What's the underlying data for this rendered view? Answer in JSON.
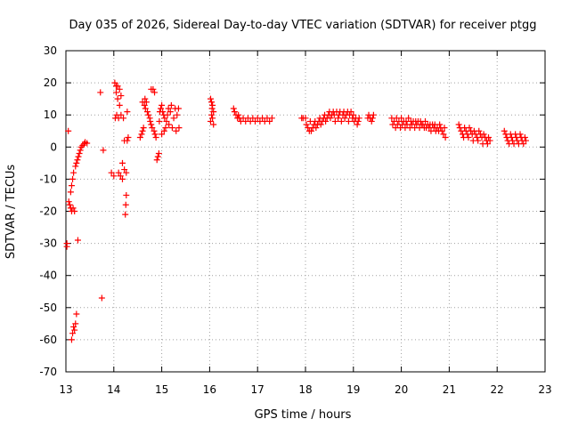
{
  "chart_data": {
    "type": "scatter",
    "title": "Day 035 of 2026, Sidereal Day-to-day VTEC variation (SDTVAR) for receiver ptgg",
    "xlabel": "GPS time / hours",
    "ylabel": "SDTVAR / TECUs",
    "xlim": [
      13,
      23
    ],
    "ylim": [
      -70,
      30
    ],
    "xticks": [
      13,
      14,
      15,
      16,
      17,
      18,
      19,
      20,
      21,
      22,
      23
    ],
    "yticks": [
      -70,
      -60,
      -50,
      -40,
      -30,
      -20,
      -10,
      0,
      10,
      20,
      30
    ],
    "grid": true,
    "marker": "+",
    "color": "#ff0000",
    "series": [
      {
        "name": "SDTVAR",
        "points": [
          [
            13.02,
            -31
          ],
          [
            13.02,
            -30
          ],
          [
            13.05,
            5
          ],
          [
            13.06,
            -17
          ],
          [
            13.08,
            -18
          ],
          [
            13.1,
            -14
          ],
          [
            13.1,
            -19
          ],
          [
            13.12,
            -12
          ],
          [
            13.12,
            -20
          ],
          [
            13.14,
            -10
          ],
          [
            13.15,
            -19
          ],
          [
            13.16,
            -8
          ],
          [
            13.18,
            -20
          ],
          [
            13.18,
            -57
          ],
          [
            13.2,
            -6
          ],
          [
            13.2,
            -55
          ],
          [
            13.22,
            -5
          ],
          [
            13.22,
            -52
          ],
          [
            13.24,
            -4
          ],
          [
            13.25,
            -29
          ],
          [
            13.26,
            -3
          ],
          [
            13.28,
            -2
          ],
          [
            13.3,
            -1
          ],
          [
            13.32,
            0
          ],
          [
            13.35,
            0.5
          ],
          [
            13.38,
            1
          ],
          [
            13.4,
            1.5
          ],
          [
            13.44,
            1.2
          ],
          [
            13.12,
            -60
          ],
          [
            13.14,
            -58
          ],
          [
            13.16,
            -56
          ],
          [
            13.72,
            17
          ],
          [
            13.75,
            -47
          ],
          [
            13.78,
            -1
          ],
          [
            13.95,
            -8
          ],
          [
            14.0,
            -9
          ],
          [
            14.02,
            20
          ],
          [
            14.03,
            9
          ],
          [
            14.05,
            19
          ],
          [
            14.05,
            17
          ],
          [
            14.06,
            10
          ],
          [
            14.08,
            19
          ],
          [
            14.08,
            15
          ],
          [
            14.1,
            -8
          ],
          [
            14.1,
            9
          ],
          [
            14.12,
            18
          ],
          [
            14.12,
            13
          ],
          [
            14.14,
            -9
          ],
          [
            14.15,
            16
          ],
          [
            14.15,
            10
          ],
          [
            14.18,
            -10
          ],
          [
            14.18,
            -5
          ],
          [
            14.2,
            9
          ],
          [
            14.22,
            -7
          ],
          [
            14.22,
            2
          ],
          [
            14.24,
            -21
          ],
          [
            14.25,
            -18
          ],
          [
            14.26,
            -15
          ],
          [
            14.26,
            -8
          ],
          [
            14.28,
            2
          ],
          [
            14.28,
            11
          ],
          [
            14.3,
            3
          ],
          [
            14.55,
            3
          ],
          [
            14.58,
            4
          ],
          [
            14.6,
            5
          ],
          [
            14.6,
            14
          ],
          [
            14.62,
            6
          ],
          [
            14.64,
            13
          ],
          [
            14.65,
            15
          ],
          [
            14.66,
            12
          ],
          [
            14.68,
            14
          ],
          [
            14.7,
            11
          ],
          [
            14.72,
            10
          ],
          [
            14.75,
            9
          ],
          [
            14.76,
            8
          ],
          [
            14.78,
            7
          ],
          [
            14.78,
            18
          ],
          [
            14.8,
            6
          ],
          [
            14.82,
            18
          ],
          [
            14.84,
            5
          ],
          [
            14.85,
            17
          ],
          [
            14.86,
            4
          ],
          [
            14.88,
            3
          ],
          [
            14.9,
            -4
          ],
          [
            14.92,
            -3
          ],
          [
            14.94,
            -2
          ],
          [
            14.95,
            8
          ],
          [
            14.96,
            11
          ],
          [
            14.98,
            12
          ],
          [
            15.0,
            13
          ],
          [
            15.0,
            4
          ],
          [
            15.02,
            11
          ],
          [
            15.04,
            10
          ],
          [
            15.05,
            5
          ],
          [
            15.06,
            9
          ],
          [
            15.08,
            6
          ],
          [
            15.1,
            8
          ],
          [
            15.12,
            10
          ],
          [
            15.14,
            12
          ],
          [
            15.15,
            7
          ],
          [
            15.18,
            11
          ],
          [
            15.2,
            13
          ],
          [
            15.22,
            6
          ],
          [
            15.25,
            9
          ],
          [
            15.28,
            12
          ],
          [
            15.3,
            5
          ],
          [
            15.32,
            10
          ],
          [
            15.35,
            12
          ],
          [
            15.36,
            6
          ],
          [
            16.02,
            8
          ],
          [
            16.02,
            15
          ],
          [
            16.04,
            10
          ],
          [
            16.04,
            14
          ],
          [
            16.05,
            12
          ],
          [
            16.06,
            13
          ],
          [
            16.06,
            9
          ],
          [
            16.08,
            11
          ],
          [
            16.08,
            7
          ],
          [
            16.5,
            12
          ],
          [
            16.52,
            11
          ],
          [
            16.55,
            10
          ],
          [
            16.58,
            9
          ],
          [
            16.6,
            10
          ],
          [
            16.62,
            9
          ],
          [
            16.65,
            8
          ],
          [
            16.7,
            9
          ],
          [
            16.75,
            8
          ],
          [
            16.8,
            9
          ],
          [
            16.85,
            8
          ],
          [
            16.9,
            9
          ],
          [
            16.95,
            8
          ],
          [
            17.0,
            9
          ],
          [
            17.05,
            8
          ],
          [
            17.1,
            9
          ],
          [
            17.15,
            8
          ],
          [
            17.2,
            9
          ],
          [
            17.25,
            8
          ],
          [
            17.3,
            9
          ],
          [
            17.92,
            9
          ],
          [
            17.95,
            9
          ],
          [
            18.0,
            9
          ],
          [
            18.02,
            7
          ],
          [
            18.05,
            6
          ],
          [
            18.08,
            5
          ],
          [
            18.1,
            8
          ],
          [
            18.12,
            5
          ],
          [
            18.15,
            6
          ],
          [
            18.18,
            7
          ],
          [
            18.2,
            8
          ],
          [
            18.22,
            6
          ],
          [
            18.25,
            7
          ],
          [
            18.28,
            8
          ],
          [
            18.3,
            9
          ],
          [
            18.32,
            7
          ],
          [
            18.35,
            8
          ],
          [
            18.38,
            9
          ],
          [
            18.4,
            10
          ],
          [
            18.42,
            8
          ],
          [
            18.45,
            9
          ],
          [
            18.48,
            10
          ],
          [
            18.5,
            11
          ],
          [
            18.52,
            9
          ],
          [
            18.55,
            10
          ],
          [
            18.58,
            11
          ],
          [
            18.6,
            10
          ],
          [
            18.62,
            8
          ],
          [
            18.65,
            11
          ],
          [
            18.68,
            9
          ],
          [
            18.7,
            10
          ],
          [
            18.72,
            11
          ],
          [
            18.75,
            8
          ],
          [
            18.78,
            10
          ],
          [
            18.8,
            11
          ],
          [
            18.82,
            9
          ],
          [
            18.85,
            10
          ],
          [
            18.88,
            11
          ],
          [
            18.9,
            8
          ],
          [
            18.92,
            10
          ],
          [
            18.95,
            11
          ],
          [
            18.98,
            9
          ],
          [
            19.0,
            10
          ],
          [
            19.02,
            8
          ],
          [
            19.05,
            9
          ],
          [
            19.08,
            7
          ],
          [
            19.1,
            8
          ],
          [
            19.12,
            9
          ],
          [
            19.3,
            9
          ],
          [
            19.32,
            10
          ],
          [
            19.35,
            9
          ],
          [
            19.38,
            8
          ],
          [
            19.4,
            9
          ],
          [
            19.42,
            10
          ],
          [
            19.8,
            9
          ],
          [
            19.82,
            7
          ],
          [
            19.85,
            8
          ],
          [
            19.88,
            6
          ],
          [
            19.9,
            9
          ],
          [
            19.92,
            7
          ],
          [
            19.95,
            8
          ],
          [
            19.98,
            6
          ],
          [
            20.0,
            9
          ],
          [
            20.02,
            7
          ],
          [
            20.05,
            8
          ],
          [
            20.08,
            6
          ],
          [
            20.1,
            8
          ],
          [
            20.12,
            7
          ],
          [
            20.15,
            9
          ],
          [
            20.18,
            6
          ],
          [
            20.2,
            8
          ],
          [
            20.22,
            7
          ],
          [
            20.25,
            8
          ],
          [
            20.28,
            6
          ],
          [
            20.3,
            8
          ],
          [
            20.32,
            7
          ],
          [
            20.35,
            8
          ],
          [
            20.38,
            6
          ],
          [
            20.4,
            8
          ],
          [
            20.42,
            7
          ],
          [
            20.45,
            7
          ],
          [
            20.48,
            6
          ],
          [
            20.5,
            8
          ],
          [
            20.52,
            6
          ],
          [
            20.55,
            7
          ],
          [
            20.58,
            6
          ],
          [
            20.6,
            7
          ],
          [
            20.62,
            5
          ],
          [
            20.65,
            7
          ],
          [
            20.68,
            6
          ],
          [
            20.7,
            7
          ],
          [
            20.72,
            5
          ],
          [
            20.75,
            6
          ],
          [
            20.78,
            5
          ],
          [
            20.8,
            7
          ],
          [
            20.82,
            6
          ],
          [
            20.85,
            5
          ],
          [
            20.88,
            4
          ],
          [
            20.9,
            6
          ],
          [
            20.92,
            3
          ],
          [
            21.2,
            7
          ],
          [
            21.22,
            6
          ],
          [
            21.25,
            5
          ],
          [
            21.28,
            4
          ],
          [
            21.3,
            3
          ],
          [
            21.32,
            6
          ],
          [
            21.35,
            5
          ],
          [
            21.38,
            4
          ],
          [
            21.4,
            3
          ],
          [
            21.42,
            6
          ],
          [
            21.45,
            5
          ],
          [
            21.48,
            4
          ],
          [
            21.5,
            2
          ],
          [
            21.52,
            5
          ],
          [
            21.55,
            4
          ],
          [
            21.58,
            3
          ],
          [
            21.6,
            2
          ],
          [
            21.62,
            5
          ],
          [
            21.65,
            4
          ],
          [
            21.68,
            3
          ],
          [
            21.7,
            1
          ],
          [
            21.72,
            4
          ],
          [
            21.75,
            3
          ],
          [
            21.78,
            2
          ],
          [
            21.8,
            1
          ],
          [
            21.82,
            3
          ],
          [
            21.85,
            2
          ],
          [
            22.15,
            5
          ],
          [
            22.18,
            4
          ],
          [
            22.2,
            3
          ],
          [
            22.22,
            2
          ],
          [
            22.25,
            1
          ],
          [
            22.28,
            4
          ],
          [
            22.3,
            3
          ],
          [
            22.32,
            2
          ],
          [
            22.35,
            1
          ],
          [
            22.38,
            4
          ],
          [
            22.4,
            3
          ],
          [
            22.42,
            2
          ],
          [
            22.45,
            1
          ],
          [
            22.48,
            4
          ],
          [
            22.5,
            3
          ],
          [
            22.52,
            2
          ],
          [
            22.55,
            1
          ],
          [
            22.58,
            3
          ],
          [
            22.6,
            2
          ]
        ]
      }
    ]
  }
}
